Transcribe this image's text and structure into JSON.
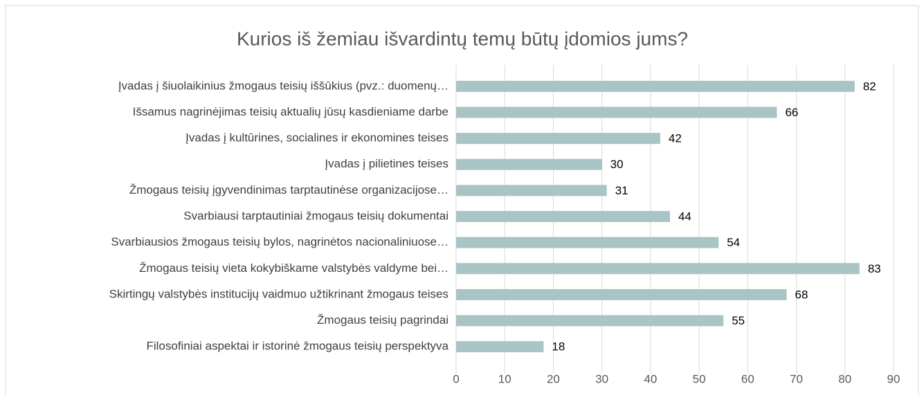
{
  "chart_data": {
    "type": "bar",
    "orientation": "horizontal",
    "title": "Kurios iš žemiau išvardintų temų būtų įdomios jums?",
    "categories": [
      "Įvadas į šiuolaikinius žmogaus teisių iššūkius (pvz.: duomenų…",
      "Išsamus nagrinėjimas teisių aktualių jūsų kasdieniame darbe",
      "Įvadas į kultūrines, socialines ir ekonomines teises",
      "Įvadas į pilietines teises",
      "Žmogaus teisių įgyvendinimas tarptautinėse organizacijose…",
      "Svarbiausi tarptautiniai žmogaus teisių dokumentai",
      "Svarbiausios žmogaus teisių bylos, nagrinėtos nacionaliniuose…",
      "Žmogaus teisių vieta kokybiškame valstybės valdyme bei…",
      "Skirtingų valstybės institucijų vaidmuo užtikrinant žmogaus teises",
      "Žmogaus teisių pagrindai",
      "Filosofiniai aspektai ir istorinė žmogaus teisių perspektyva"
    ],
    "values": [
      82,
      66,
      42,
      30,
      31,
      44,
      54,
      83,
      68,
      55,
      18
    ],
    "color": "#a9c4c4",
    "xlim": [
      0,
      90
    ],
    "xticks": [
      0,
      10,
      20,
      30,
      40,
      50,
      60,
      70,
      80,
      90
    ],
    "grid": true
  }
}
